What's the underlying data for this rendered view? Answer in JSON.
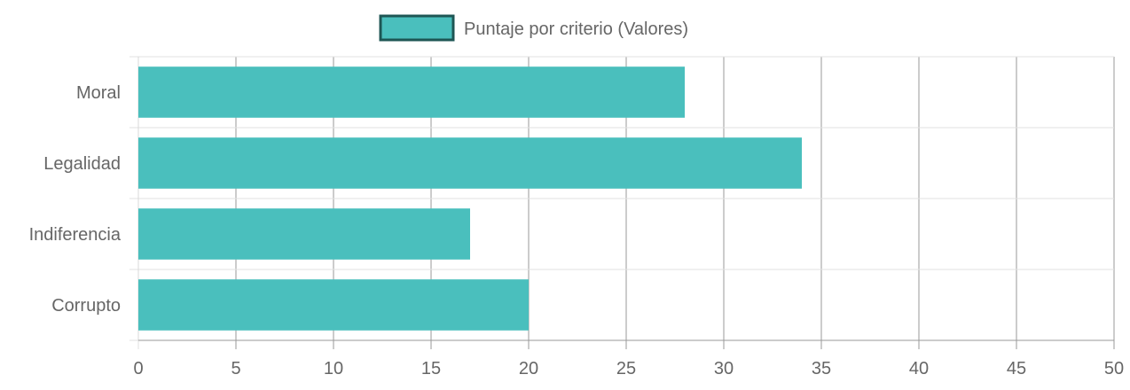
{
  "chart_data": {
    "type": "bar",
    "orientation": "horizontal",
    "categories": [
      "Moral",
      "Legalidad",
      "Indiferencia",
      "Corrupto"
    ],
    "series": [
      {
        "name": "Puntaje por criterio (Valores)",
        "values": [
          28,
          34,
          17,
          20
        ]
      }
    ],
    "xlim": [
      0,
      50
    ],
    "x_ticks": [
      0,
      5,
      10,
      15,
      20,
      25,
      30,
      35,
      40,
      45,
      50
    ],
    "legend_position": "top",
    "grid": true,
    "colors": {
      "bar_fill": "#4ABFBD",
      "legend_border": "#1E5654",
      "grid_x": "#9A9A9A",
      "grid_y": "#E2E2E2",
      "text": "#666666"
    }
  }
}
